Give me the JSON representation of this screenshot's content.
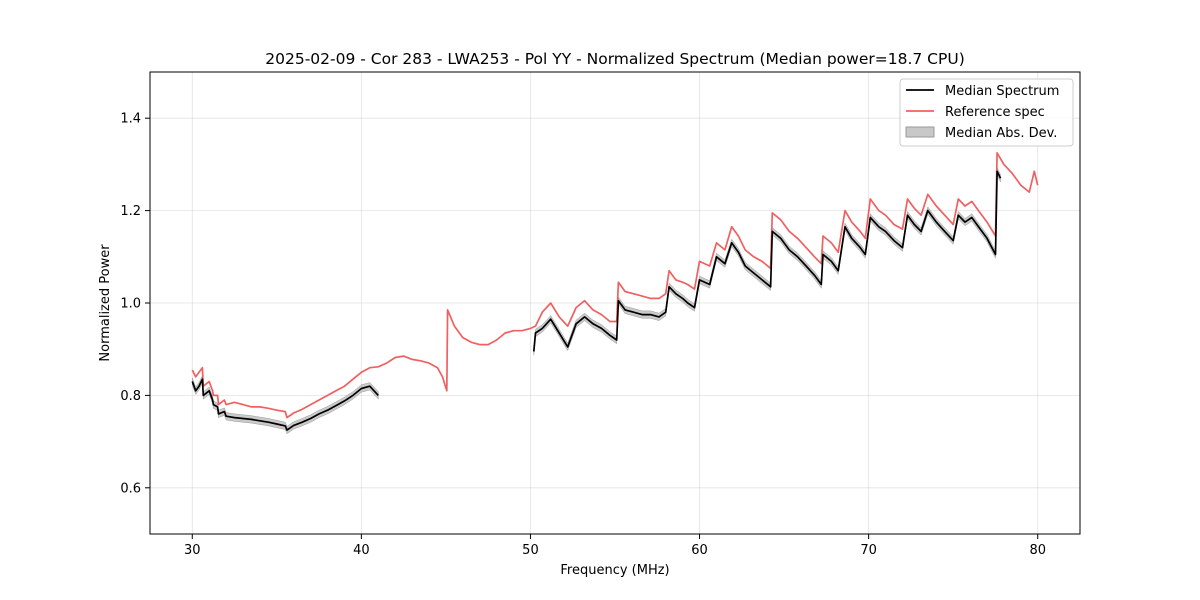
{
  "chart_data": {
    "type": "line",
    "title": "2025-02-09 - Cor 283 - LWA253 - Pol YY - Normalized Spectrum (Median power=18.7 CPU)",
    "xlabel": "Frequency (MHz)",
    "ylabel": "Normalized Power",
    "xlim": [
      27.5,
      82.5
    ],
    "ylim": [
      0.5,
      1.5
    ],
    "xticks": [
      30,
      40,
      50,
      60,
      70,
      80
    ],
    "yticks": [
      0.6,
      0.8,
      1.0,
      1.2,
      1.4
    ],
    "grid": true,
    "legend_position": "top-right",
    "legend": [
      "Median Spectrum",
      "Reference spec",
      "Median Abs. Dev."
    ],
    "colors": {
      "median": "#000000",
      "reference": "#f06060",
      "mad_fill": "#b0b0b0",
      "mad_edge": "#888888"
    },
    "series": [
      {
        "name": "Reference spec",
        "segments": [
          {
            "x": [
              30.0,
              30.2,
              30.4,
              30.6,
              30.65,
              31.0,
              31.2,
              31.25,
              31.5,
              31.55,
              31.9,
              32.0,
              32.5,
              33.0,
              33.5,
              34.0,
              34.5,
              35.0,
              35.5,
              35.6,
              36.0,
              36.5,
              37.0,
              37.5,
              38.0,
              38.5,
              39.0,
              39.5,
              40.0,
              40.5,
              41.0,
              41.5,
              42.0,
              42.5,
              43.0,
              43.5,
              44.0,
              44.5,
              44.8,
              45.05,
              45.1,
              45.5,
              46.0,
              46.5,
              47.0,
              47.5,
              48.0,
              48.5,
              49.0,
              49.5,
              50.0,
              50.3,
              50.7,
              51.2,
              51.7,
              52.2,
              52.7,
              53.2,
              53.7,
              54.2,
              54.7,
              55.1,
              55.2,
              55.6,
              56.1,
              56.6,
              57.1,
              57.6,
              58.0,
              58.2,
              58.6,
              59.0,
              59.3,
              59.7,
              60.0,
              60.6,
              61.0,
              61.5,
              61.9,
              62.3,
              62.7,
              63.2,
              63.7,
              64.2,
              64.3,
              64.8,
              65.3,
              65.8,
              66.3,
              66.8,
              67.2,
              67.3,
              67.8,
              68.2,
              68.6,
              69.0,
              69.5,
              69.8,
              70.1,
              70.6,
              71.0,
              71.5,
              72.0,
              72.3,
              72.7,
              73.1,
              73.5,
              74.0,
              74.5,
              75.0,
              75.3,
              75.7,
              76.1,
              76.5,
              77.0,
              77.5,
              77.6,
              78.0,
              78.5,
              79.0,
              79.5,
              79.8,
              80.0
            ],
            "y": [
              0.855,
              0.84,
              0.85,
              0.86,
              0.82,
              0.83,
              0.81,
              0.8,
              0.8,
              0.78,
              0.79,
              0.78,
              0.785,
              0.78,
              0.775,
              0.775,
              0.772,
              0.768,
              0.765,
              0.752,
              0.762,
              0.77,
              0.78,
              0.79,
              0.8,
              0.81,
              0.82,
              0.835,
              0.85,
              0.86,
              0.862,
              0.87,
              0.882,
              0.885,
              0.878,
              0.875,
              0.87,
              0.86,
              0.84,
              0.81,
              0.985,
              0.95,
              0.925,
              0.915,
              0.91,
              0.91,
              0.92,
              0.935,
              0.94,
              0.94,
              0.945,
              0.95,
              0.98,
              1.0,
              0.97,
              0.95,
              0.99,
              1.005,
              0.985,
              0.975,
              0.96,
              0.96,
              1.045,
              1.025,
              1.02,
              1.015,
              1.01,
              1.01,
              1.02,
              1.07,
              1.05,
              1.045,
              1.04,
              1.03,
              1.09,
              1.08,
              1.13,
              1.115,
              1.165,
              1.145,
              1.115,
              1.1,
              1.09,
              1.075,
              1.195,
              1.18,
              1.155,
              1.14,
              1.12,
              1.1,
              1.085,
              1.145,
              1.13,
              1.11,
              1.2,
              1.175,
              1.155,
              1.14,
              1.225,
              1.2,
              1.19,
              1.17,
              1.16,
              1.225,
              1.205,
              1.19,
              1.235,
              1.21,
              1.19,
              1.17,
              1.225,
              1.21,
              1.22,
              1.2,
              1.175,
              1.145,
              1.325,
              1.3,
              1.28,
              1.255,
              1.24,
              1.285,
              1.255
            ]
          }
        ]
      },
      {
        "name": "Median Spectrum",
        "segments": [
          {
            "x": [
              30.0,
              30.2,
              30.4,
              30.6,
              30.65,
              31.0,
              31.2,
              31.25,
              31.5,
              31.55,
              31.9,
              32.0,
              32.5,
              33.0,
              33.5,
              34.0,
              34.5,
              35.0,
              35.5,
              35.6,
              36.0,
              36.5,
              37.0,
              37.5,
              38.0,
              38.5,
              39.0,
              39.5,
              40.0,
              40.5,
              41.0
            ],
            "y": [
              0.83,
              0.81,
              0.82,
              0.835,
              0.8,
              0.81,
              0.79,
              0.78,
              0.775,
              0.76,
              0.765,
              0.755,
              0.752,
              0.75,
              0.748,
              0.745,
              0.742,
              0.738,
              0.734,
              0.725,
              0.735,
              0.742,
              0.75,
              0.76,
              0.768,
              0.778,
              0.788,
              0.8,
              0.815,
              0.82,
              0.8
            ]
          },
          {
            "x": [
              50.2,
              50.3,
              50.7,
              51.2,
              51.7,
              52.2,
              52.7,
              53.2,
              53.7,
              54.2,
              54.7,
              55.1,
              55.2,
              55.6,
              56.1,
              56.6,
              57.1,
              57.6,
              58.0,
              58.2,
              58.6,
              59.0,
              59.3,
              59.7,
              60.0,
              60.6,
              61.0,
              61.5,
              61.9,
              62.3,
              62.7,
              63.2,
              63.7,
              64.2,
              64.3,
              64.8,
              65.3,
              65.8,
              66.3,
              66.8,
              67.2,
              67.3,
              67.8,
              68.2,
              68.6,
              69.0,
              69.5,
              69.8,
              70.1,
              70.6,
              71.0,
              71.5,
              72.0,
              72.3,
              72.7,
              73.1,
              73.5,
              74.0,
              74.5,
              75.0,
              75.3,
              75.7,
              76.1,
              76.5,
              77.0,
              77.5,
              77.6,
              77.8
            ],
            "y": [
              0.895,
              0.935,
              0.945,
              0.965,
              0.935,
              0.905,
              0.955,
              0.97,
              0.955,
              0.945,
              0.93,
              0.92,
              1.005,
              0.985,
              0.98,
              0.975,
              0.975,
              0.97,
              0.98,
              1.035,
              1.02,
              1.01,
              1.0,
              0.99,
              1.05,
              1.04,
              1.1,
              1.085,
              1.13,
              1.11,
              1.08,
              1.065,
              1.05,
              1.035,
              1.155,
              1.14,
              1.115,
              1.1,
              1.08,
              1.06,
              1.04,
              1.105,
              1.09,
              1.07,
              1.165,
              1.14,
              1.12,
              1.105,
              1.185,
              1.165,
              1.155,
              1.135,
              1.12,
              1.19,
              1.17,
              1.155,
              1.2,
              1.175,
              1.155,
              1.135,
              1.19,
              1.175,
              1.185,
              1.165,
              1.14,
              1.105,
              1.285,
              1.27
            ]
          }
        ]
      }
    ]
  }
}
